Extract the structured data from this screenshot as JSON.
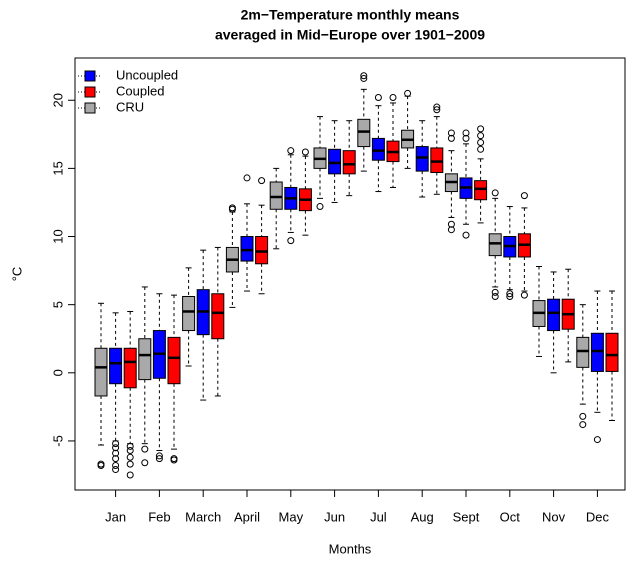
{
  "chart_data": {
    "type": "boxplot",
    "title": [
      "2m−Temperature monthly means",
      "averaged in Mid−Europe over 1901−2009"
    ],
    "xlabel": "Months",
    "ylabel": "°C",
    "categories": [
      "Jan",
      "Feb",
      "March",
      "April",
      "May",
      "Jun",
      "Jul",
      "Aug",
      "Sept",
      "Oct",
      "Nov",
      "Dec"
    ],
    "ylim": [
      -8.6,
      23.1
    ],
    "yticks": [
      -5,
      0,
      5,
      10,
      15,
      20
    ],
    "legend": "top-left",
    "series": [
      {
        "name": "Uncoupled",
        "color": "#0000ff",
        "whisker_low": [
          -5.0,
          -5.7,
          -2.0,
          6.0,
          10.3,
          12.5,
          13.3,
          12.9,
          10.9,
          6.1,
          0.0,
          -2.9
        ],
        "q1": [
          -0.8,
          -0.4,
          2.8,
          8.2,
          12.0,
          14.6,
          15.6,
          14.8,
          12.8,
          8.5,
          3.1,
          0.1
        ],
        "median": [
          0.7,
          1.4,
          4.5,
          9.0,
          12.8,
          15.4,
          16.3,
          15.8,
          13.6,
          9.3,
          4.4,
          1.6
        ],
        "q3": [
          1.8,
          3.1,
          6.1,
          10.0,
          13.6,
          16.4,
          17.2,
          16.6,
          14.3,
          10.0,
          5.4,
          2.9
        ],
        "whisker_high": [
          4.4,
          5.8,
          9.0,
          12.4,
          16.0,
          18.5,
          19.6,
          18.5,
          16.8,
          12.2,
          7.4,
          6.0
        ],
        "outliers": [
          [
            -5.2,
            -5.5,
            -5.9,
            -6.3,
            -6.8,
            -7.1
          ],
          [
            -6.1,
            -6.3
          ],
          [],
          [
            14.3
          ],
          [
            9.7,
            16.3
          ],
          [],
          [
            20.2
          ],
          [],
          [
            10.1,
            17.2,
            17.6
          ],
          [
            5.6,
            5.8
          ],
          [],
          [
            -4.9
          ]
        ]
      },
      {
        "name": "Coupled",
        "color": "#ff0000",
        "whisker_low": [
          -5.2,
          -5.6,
          -1.7,
          5.8,
          10.1,
          13.0,
          13.6,
          13.1,
          11.0,
          6.0,
          0.8,
          -3.5
        ],
        "q1": [
          -1.1,
          -0.8,
          2.5,
          8.0,
          11.9,
          14.6,
          15.5,
          14.7,
          12.7,
          8.5,
          3.2,
          0.1
        ],
        "median": [
          0.8,
          1.1,
          4.4,
          8.9,
          12.7,
          15.3,
          16.2,
          15.5,
          13.5,
          9.4,
          4.3,
          1.3
        ],
        "q3": [
          1.8,
          2.6,
          5.8,
          10.0,
          13.5,
          16.3,
          17.0,
          16.5,
          14.1,
          10.2,
          5.4,
          2.9
        ],
        "whisker_high": [
          4.5,
          5.7,
          9.2,
          12.3,
          15.9,
          18.5,
          19.8,
          18.8,
          15.7,
          12.1,
          7.6,
          6.0
        ],
        "outliers": [
          [
            -5.4,
            -5.7,
            -6.2,
            -6.7,
            -7.5
          ],
          [
            -6.3,
            -6.4
          ],
          [],
          [
            14.1
          ],
          [
            16.2
          ],
          [],
          [
            20.2
          ],
          [
            19.3,
            19.5
          ],
          [
            16.4,
            16.9,
            17.4,
            17.9
          ],
          [
            5.7,
            13.0
          ],
          [],
          []
        ]
      },
      {
        "name": "CRU",
        "color": "#a9a9a9",
        "whisker_low": [
          -5.3,
          -5.2,
          0.5,
          4.8,
          9.1,
          12.8,
          14.8,
          15.0,
          11.4,
          6.3,
          1.2,
          -2.3
        ],
        "q1": [
          -1.7,
          -0.5,
          3.1,
          7.4,
          12.0,
          15.0,
          16.6,
          16.5,
          13.3,
          8.6,
          3.4,
          0.4
        ],
        "median": [
          0.4,
          1.3,
          4.5,
          8.3,
          12.9,
          15.7,
          17.7,
          17.1,
          14.0,
          9.5,
          4.4,
          1.6
        ],
        "q3": [
          1.8,
          2.5,
          5.6,
          9.2,
          14.0,
          16.5,
          18.6,
          17.8,
          14.6,
          10.2,
          5.3,
          2.6
        ],
        "whisker_high": [
          5.1,
          6.3,
          7.7,
          11.8,
          15.0,
          18.8,
          20.8,
          20.3,
          16.3,
          12.8,
          7.8,
          5.0
        ],
        "outliers": [
          [
            -6.7,
            -6.8
          ],
          [
            -5.6,
            -6.6
          ],
          [],
          [
            12.0,
            12.1
          ],
          [],
          [
            12.2
          ],
          [
            21.6,
            21.8
          ],
          [
            20.5
          ],
          [
            10.5,
            10.9,
            17.2,
            17.6
          ],
          [
            5.6,
            5.9,
            13.2
          ],
          [],
          [
            -3.2,
            -3.8
          ]
        ]
      }
    ]
  }
}
